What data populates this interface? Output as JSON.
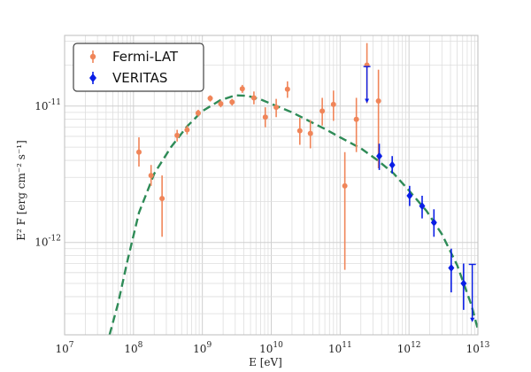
{
  "chart_data": {
    "type": "scatter",
    "title": "",
    "xlabel": "E [eV]",
    "ylabel": "E² F [erg cm⁻² s⁻¹]",
    "xscale": "log",
    "yscale": "log",
    "xlim": [
      10000000.0,
      10000000000000.0
    ],
    "ylim": [
      2.1e-13,
      3.3e-11
    ],
    "grid": true,
    "legend_position": "top-left",
    "x_ticks": [
      {
        "value": 10000000.0,
        "label": "10^7"
      },
      {
        "value": 100000000.0,
        "label": "10^8"
      },
      {
        "value": 1000000000.0,
        "label": "10^9"
      },
      {
        "value": 10000000000.0,
        "label": "10^10"
      },
      {
        "value": 100000000000.0,
        "label": "10^11"
      },
      {
        "value": 1000000000000.0,
        "label": "10^12"
      },
      {
        "value": 10000000000000.0,
        "label": "10^13"
      }
    ],
    "y_ticks": [
      {
        "value": 1e-12,
        "label": "10^-12"
      },
      {
        "value": 1e-11,
        "label": "10^-11"
      }
    ],
    "series": [
      {
        "name": "Fermi-LAT",
        "color": "#f08559",
        "marker": "circle",
        "points": [
          {
            "x": 120000000.0,
            "y": 4.6e-12,
            "lo": 3.6e-12,
            "hi": 5.9e-12
          },
          {
            "x": 180000000.0,
            "y": 3.1e-12,
            "lo": 2.6e-12,
            "hi": 3.7e-12
          },
          {
            "x": 260000000.0,
            "y": 2.1e-12,
            "lo": 1.1e-12,
            "hi": 3.1e-12
          },
          {
            "x": 430000000.0,
            "y": 6.1e-12,
            "lo": 5.5e-12,
            "hi": 6.7e-12
          },
          {
            "x": 600000000.0,
            "y": 6.7e-12,
            "lo": 6.2e-12,
            "hi": 7.2e-12
          },
          {
            "x": 870000000.0,
            "y": 8.9e-12,
            "lo": 8.4e-12,
            "hi": 9.4e-12
          },
          {
            "x": 1300000000.0,
            "y": 1.14e-11,
            "lo": 1.08e-11,
            "hi": 1.2e-11
          },
          {
            "x": 1850000000.0,
            "y": 1.04e-11,
            "lo": 9.8e-12,
            "hi": 1.1e-11
          },
          {
            "x": 2700000000.0,
            "y": 1.07e-11,
            "lo": 1.01e-11,
            "hi": 1.13e-11
          },
          {
            "x": 3800000000.0,
            "y": 1.34e-11,
            "lo": 1.25e-11,
            "hi": 1.43e-11
          },
          {
            "x": 5600000000.0,
            "y": 1.15e-11,
            "lo": 1.03e-11,
            "hi": 1.28e-11
          },
          {
            "x": 8200000000.0,
            "y": 8.3e-12,
            "lo": 7e-12,
            "hi": 9.8e-12
          },
          {
            "x": 11800000000.0,
            "y": 9.8e-12,
            "lo": 8.3e-12,
            "hi": 1.13e-11
          },
          {
            "x": 17200000000.0,
            "y": 1.33e-11,
            "lo": 1.15e-11,
            "hi": 1.52e-11
          },
          {
            "x": 26000000000.0,
            "y": 6.6e-12,
            "lo": 5.2e-12,
            "hi": 8.2e-12
          },
          {
            "x": 37000000000.0,
            "y": 6.3e-12,
            "lo": 4.9e-12,
            "hi": 7.9e-12
          },
          {
            "x": 55000000000.0,
            "y": 9.2e-12,
            "lo": 7.2e-12,
            "hi": 1.15e-11
          },
          {
            "x": 80000000000.0,
            "y": 1.03e-11,
            "lo": 7.8e-12,
            "hi": 1.3e-11
          },
          {
            "x": 117000000000.0,
            "y": 2.6e-12,
            "lo": 6.3e-13,
            "hi": 4.6e-12
          },
          {
            "x": 172000000000.0,
            "y": 8e-12,
            "lo": 4.6e-12,
            "hi": 1.15e-11
          },
          {
            "x": 245000000000.0,
            "y": 2e-11,
            "lo": 1.05e-11,
            "hi": 2.9e-11
          },
          {
            "x": 360000000000.0,
            "y": 1.09e-11,
            "lo": 3.5e-12,
            "hi": 1.85e-11
          }
        ]
      },
      {
        "name": "VERITAS",
        "color": "#0a1ee6",
        "marker": "diamond",
        "points": [
          {
            "x": 370000000000.0,
            "y": 4.3e-12,
            "lo": 3.4e-12,
            "hi": 5.3e-12
          },
          {
            "x": 570000000000.0,
            "y": 3.7e-12,
            "lo": 3.2e-12,
            "hi": 4.3e-12
          },
          {
            "x": 1020000000000.0,
            "y": 2.2e-12,
            "lo": 1.85e-12,
            "hi": 2.6e-12
          },
          {
            "x": 1550000000000.0,
            "y": 1.85e-12,
            "lo": 1.5e-12,
            "hi": 2.2e-12
          },
          {
            "x": 2300000000000.0,
            "y": 1.4e-12,
            "lo": 1.1e-12,
            "hi": 1.75e-12
          },
          {
            "x": 4100000000000.0,
            "y": 6.5e-13,
            "lo": 4.3e-13,
            "hi": 9e-13
          },
          {
            "x": 6200000000000.0,
            "y": 5e-13,
            "lo": 3.2e-13,
            "hi": 7e-13
          }
        ]
      }
    ],
    "upper_limits": [
      {
        "series": "VERITAS",
        "x": 245000000000.0,
        "y": 1.95e-11,
        "arrow_to": 1.05e-11
      },
      {
        "series": "VERITAS",
        "x": 8300000000000.0,
        "y": 6.9e-13,
        "arrow_to": 2.6e-13
      }
    ],
    "model_curve": {
      "style": "dashed",
      "color": "#2e8b57",
      "x": [
        45000000.0,
        60000000.0,
        80000000.0,
        120000000.0,
        200000000.0,
        350000000.0,
        600000000.0,
        1000000000.0,
        1800000000.0,
        3000000000.0,
        4500000000.0,
        7000000000.0,
        12000000000.0,
        20000000000.0,
        35000000000.0,
        60000000000.0,
        100000000000.0,
        200000000000.0,
        350000000000.0,
        600000000000.0,
        1000000000000.0,
        1800000000000.0,
        3000000000000.0,
        5000000000000.0,
        8000000000000.0,
        10000000000000.0
      ],
      "y": [
        2.1e-13,
        3.6e-13,
        7e-13,
        1.65e-12,
        3.2e-12,
        5e-12,
        7.1e-12,
        9.2e-12,
        1.1e-11,
        1.2e-11,
        1.19e-11,
        1.12e-11,
        1e-11,
        9e-12,
        7.8e-12,
        6.8e-12,
        5.9e-12,
        4.9e-12,
        4e-12,
        3.2e-12,
        2.4e-12,
        1.7e-12,
        1.15e-12,
        6.8e-13,
        3.5e-13,
        2.3e-13
      ]
    }
  }
}
